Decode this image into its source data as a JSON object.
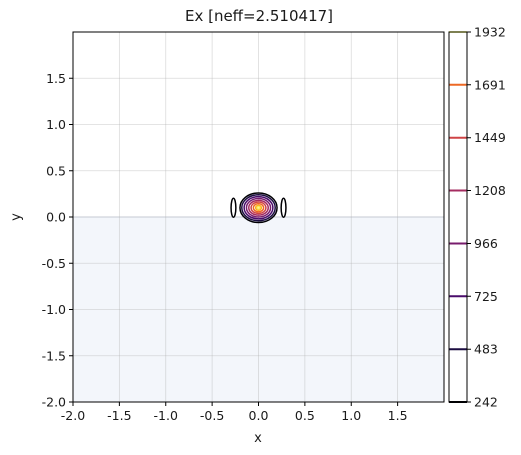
{
  "chart_data": {
    "type": "contour",
    "title": "Ex [neff=2.510417]",
    "xlabel": "x",
    "ylabel": "y",
    "xlim": [
      -2.0,
      2.0
    ],
    "ylim": [
      -2.0,
      2.0
    ],
    "grid": true,
    "xticks": [
      "-2.0",
      "-1.5",
      "-1.0",
      "-0.5",
      "0.0",
      "0.5",
      "1.0",
      "1.5"
    ],
    "xtick_values": [
      -2.0,
      -1.5,
      -1.0,
      -0.5,
      0.0,
      0.5,
      1.0,
      1.5
    ],
    "yticks": [
      "-2.0",
      "-1.5",
      "-1.0",
      "-0.5",
      "0.0",
      "0.5",
      "1.0",
      "1.5"
    ],
    "ytick_values": [
      -2.0,
      -1.5,
      -1.0,
      -0.5,
      0.0,
      0.5,
      1.0,
      1.5
    ],
    "substrate": {
      "y_top": 0.0,
      "color": "#f3f6fb"
    },
    "mode_center": {
      "x": 0.0,
      "y": 0.1
    },
    "side_lobes": [
      {
        "x": -0.27,
        "y": 0.1,
        "level": 242
      },
      {
        "x": 0.27,
        "y": 0.1,
        "level": 242
      }
    ],
    "contour_levels": [
      {
        "value": 242,
        "color": "#000004",
        "rx": 0.2,
        "ry": 0.16
      },
      {
        "value": 483,
        "color": "#1b0c41",
        "rx": 0.18,
        "ry": 0.14
      },
      {
        "value": 725,
        "color": "#4a0c6b",
        "rx": 0.155,
        "ry": 0.12
      },
      {
        "value": 966,
        "color": "#781c6d",
        "rx": 0.13,
        "ry": 0.1
      },
      {
        "value": 1208,
        "color": "#a52c60",
        "rx": 0.105,
        "ry": 0.08
      },
      {
        "value": 1449,
        "color": "#cf4446",
        "rx": 0.08,
        "ry": 0.062
      },
      {
        "value": 1691,
        "color": "#ed6925",
        "rx": 0.055,
        "ry": 0.044
      },
      {
        "value": 1932,
        "color": "#fb9b06",
        "rx": 0.03,
        "ry": 0.026
      }
    ],
    "colorbar": {
      "min": 242,
      "max": 1932,
      "ticks": [
        "242",
        "483",
        "725",
        "966",
        "1208",
        "1449",
        "1691",
        "1932"
      ],
      "tick_values": [
        242,
        483,
        725,
        966,
        1208,
        1449,
        1691,
        1932
      ],
      "colors": [
        "#000004",
        "#1b0c41",
        "#4a0c6b",
        "#781c6d",
        "#a52c60",
        "#cf4446",
        "#ed6925",
        "#fcffa4"
      ]
    }
  }
}
